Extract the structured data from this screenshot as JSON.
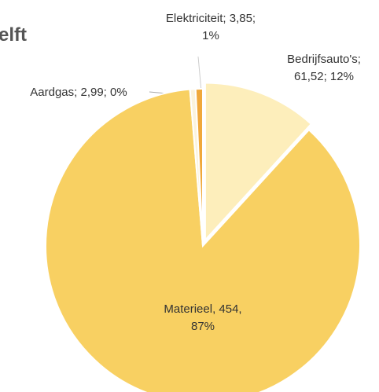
{
  "chart_data": {
    "type": "pie",
    "title": "elft",
    "categories": [
      "Bedrijfsauto's",
      "Materieel",
      "Aardgas",
      "Elektriciteit"
    ],
    "values": [
      61.52,
      454,
      2.99,
      3.85
    ],
    "percents": [
      12,
      87,
      0,
      1
    ],
    "value_labels": [
      [
        "Bedrijfsauto's;",
        "61,52; 12%"
      ],
      [
        "Materieel, 454,",
        "87%"
      ],
      [
        "Aardgas; 2,99; 0%"
      ],
      [
        "Elektriciteit; 3,85;",
        "1%"
      ]
    ],
    "colors": [
      "#fdeebb",
      "#f8d062",
      "#fbf3dc",
      "#f0a83a"
    ]
  }
}
